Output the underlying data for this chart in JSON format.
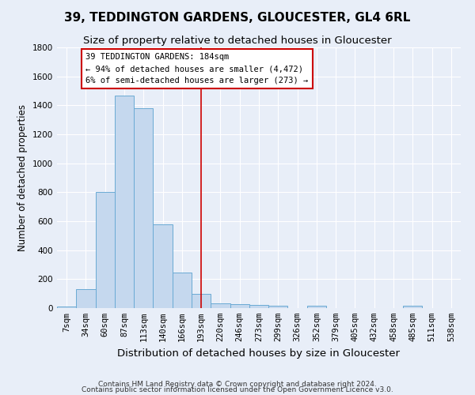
{
  "title": "39, TEDDINGTON GARDENS, GLOUCESTER, GL4 6RL",
  "subtitle": "Size of property relative to detached houses in Gloucester",
  "xlabel": "Distribution of detached houses by size in Gloucester",
  "ylabel": "Number of detached properties",
  "footnote1": "Contains HM Land Registry data © Crown copyright and database right 2024.",
  "footnote2": "Contains public sector information licensed under the Open Government Licence v3.0.",
  "bin_labels": [
    "7sqm",
    "34sqm",
    "60sqm",
    "87sqm",
    "113sqm",
    "140sqm",
    "166sqm",
    "193sqm",
    "220sqm",
    "246sqm",
    "273sqm",
    "299sqm",
    "326sqm",
    "352sqm",
    "379sqm",
    "405sqm",
    "432sqm",
    "458sqm",
    "485sqm",
    "511sqm",
    "538sqm"
  ],
  "bar_heights": [
    10,
    130,
    800,
    1470,
    1380,
    580,
    245,
    100,
    35,
    25,
    20,
    15,
    0,
    15,
    0,
    0,
    0,
    0,
    15,
    0,
    0
  ],
  "bar_color": "#c5d8ee",
  "bar_edge_color": "#6aaad4",
  "property_line_x": 7,
  "property_sqm": 184,
  "annotation_title": "39 TEDDINGTON GARDENS: 184sqm",
  "annotation_line1": "← 94% of detached houses are smaller (4,472)",
  "annotation_line2": "6% of semi-detached houses are larger (273) →",
  "annotation_box_color": "#ffffff",
  "annotation_box_edge_color": "#cc0000",
  "vline_color": "#cc0000",
  "ylim": [
    0,
    1800
  ],
  "yticks": [
    0,
    200,
    400,
    600,
    800,
    1000,
    1200,
    1400,
    1600,
    1800
  ],
  "background_color": "#e8eef8",
  "grid_color": "#ffffff",
  "title_fontsize": 11,
  "subtitle_fontsize": 9.5,
  "axis_label_fontsize": 8.5,
  "tick_fontsize": 7.5,
  "annotation_fontsize": 7.5,
  "footnote_fontsize": 6.5
}
